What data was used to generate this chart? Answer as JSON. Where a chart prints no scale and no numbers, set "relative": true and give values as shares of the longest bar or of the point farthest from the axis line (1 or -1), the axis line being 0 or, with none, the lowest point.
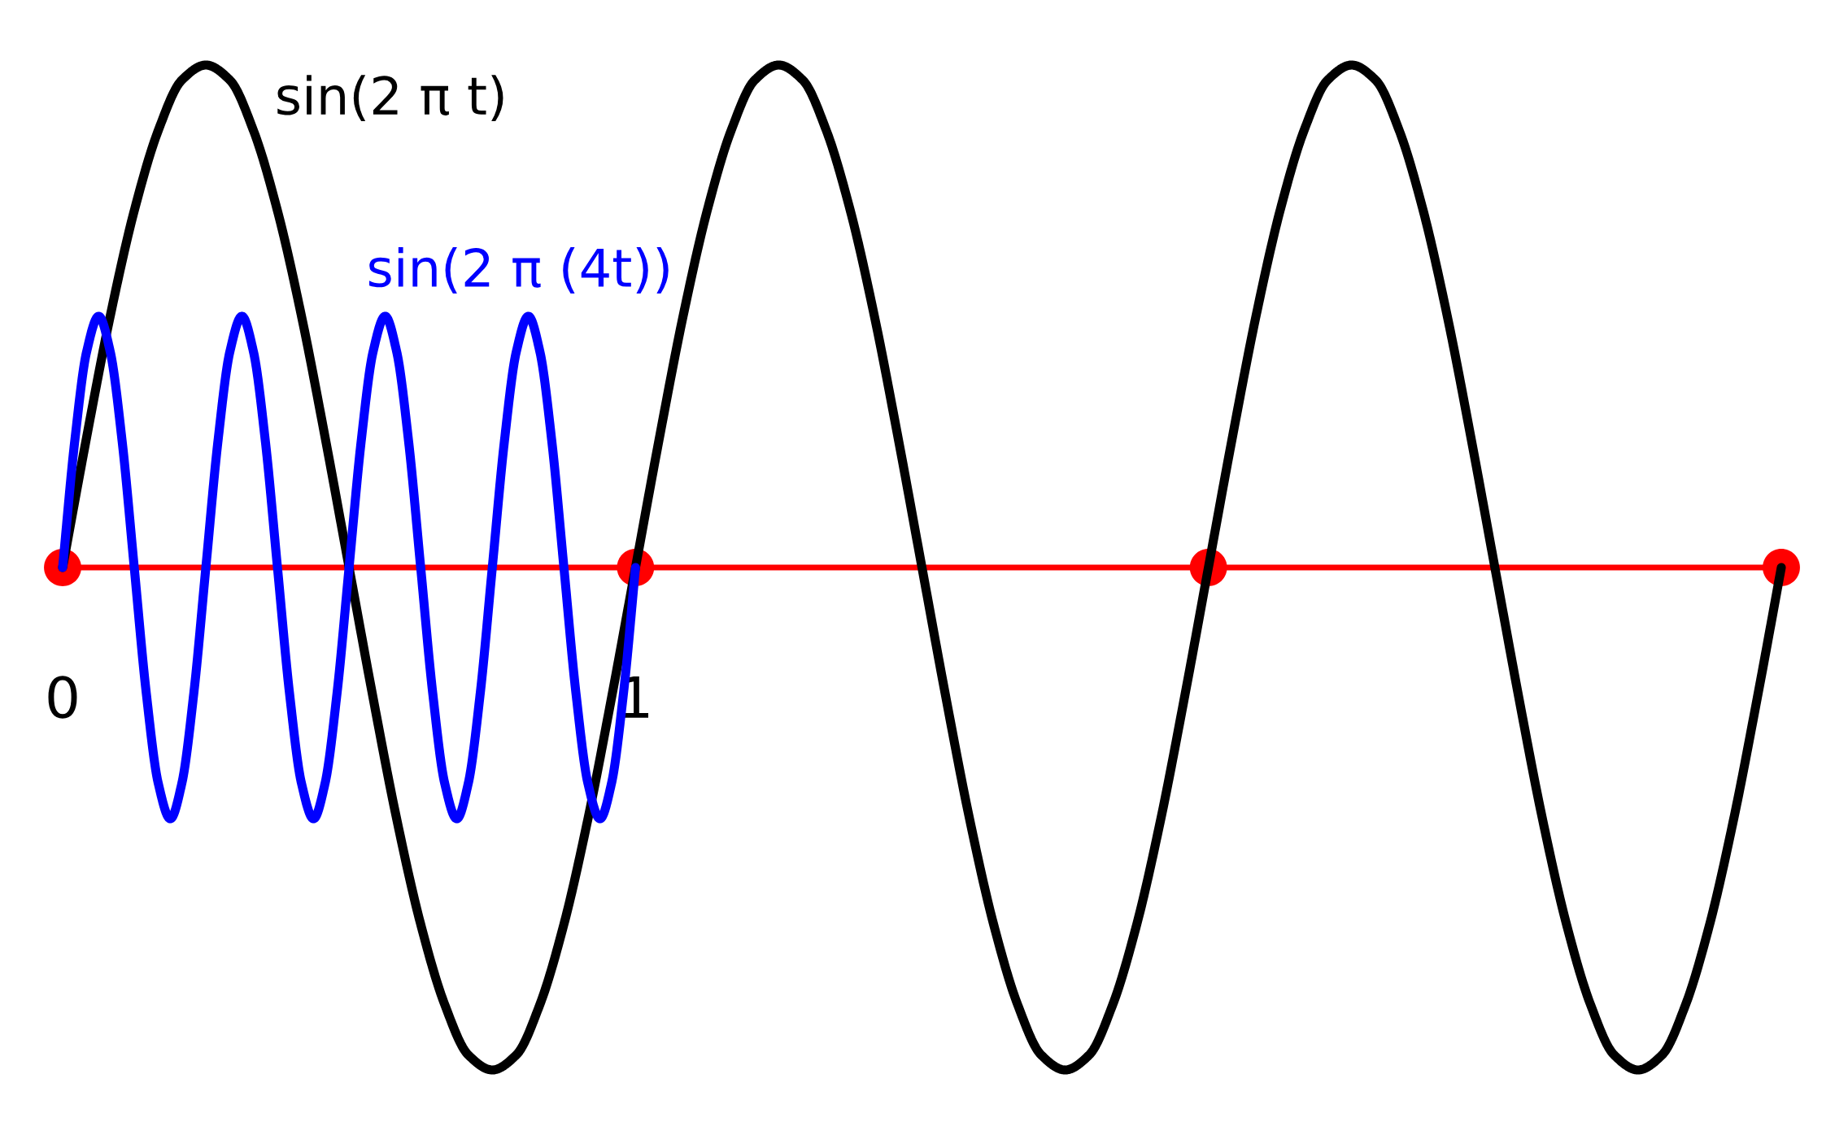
{
  "chart_data": {
    "type": "line",
    "relative": true,
    "xlim": [
      0,
      3
    ],
    "xticks": [
      0,
      1
    ],
    "legend": false,
    "grid": false,
    "line_style": "solid",
    "series": [
      {
        "type": "scatter",
        "color": "#ff0000",
        "marker": "circle",
        "x": [
          0,
          1,
          2,
          3
        ],
        "values": [
          0,
          0,
          0,
          0
        ]
      },
      {
        "name": "sin(2 π t)",
        "color": "#000000",
        "marker": "none",
        "x": [
          0,
          0.042,
          0.083,
          0.125,
          0.167,
          0.208,
          0.25,
          0.292,
          0.333,
          0.375,
          0.417,
          0.458,
          0.5,
          0.542,
          0.583,
          0.625,
          0.667,
          0.708,
          0.75,
          0.792,
          0.833,
          0.875,
          0.917,
          0.958,
          1,
          1.042,
          1.083,
          1.125,
          1.167,
          1.208,
          1.25,
          1.292,
          1.333,
          1.375,
          1.417,
          1.458,
          1.5,
          1.542,
          1.583,
          1.625,
          1.667,
          1.708,
          1.75,
          1.792,
          1.833,
          1.875,
          1.917,
          1.958,
          2,
          2.042,
          2.083,
          2.125,
          2.167,
          2.208,
          2.25,
          2.292,
          2.333,
          2.375,
          2.417,
          2.458,
          2.5,
          2.542,
          2.583,
          2.625,
          2.667,
          2.708,
          2.75,
          2.792,
          2.833,
          2.875,
          2.917,
          2.958,
          3
        ],
        "values": [
          0,
          0.26,
          0.5,
          0.71,
          0.87,
          0.97,
          1,
          0.97,
          0.87,
          0.71,
          0.5,
          0.26,
          0,
          -0.26,
          -0.5,
          -0.71,
          -0.87,
          -0.97,
          -1,
          -0.97,
          -0.87,
          -0.71,
          -0.5,
          -0.26,
          0,
          0.26,
          0.5,
          0.71,
          0.87,
          0.97,
          1,
          0.97,
          0.87,
          0.71,
          0.5,
          0.26,
          0,
          -0.26,
          -0.5,
          -0.71,
          -0.87,
          -0.97,
          -1,
          -0.97,
          -0.87,
          -0.71,
          -0.5,
          -0.26,
          0,
          0.26,
          0.5,
          0.71,
          0.87,
          0.97,
          1,
          0.97,
          0.87,
          0.71,
          0.5,
          0.26,
          0,
          -0.26,
          -0.5,
          -0.71,
          -0.87,
          -0.97,
          -1,
          -0.97,
          -0.87,
          -0.71,
          -0.5,
          -0.26,
          0
        ]
      },
      {
        "name": "sin(2 π (4t))",
        "color": "#0000ff",
        "marker": "none",
        "x": [
          0,
          0.021,
          0.042,
          0.063,
          0.083,
          0.104,
          0.125,
          0.146,
          0.167,
          0.188,
          0.208,
          0.229,
          0.25,
          0.271,
          0.292,
          0.313,
          0.333,
          0.354,
          0.375,
          0.396,
          0.417,
          0.438,
          0.458,
          0.479,
          0.5,
          0.521,
          0.542,
          0.563,
          0.583,
          0.604,
          0.625,
          0.646,
          0.667,
          0.688,
          0.708,
          0.729,
          0.75,
          0.771,
          0.792,
          0.813,
          0.833,
          0.854,
          0.875,
          0.896,
          0.917,
          0.938,
          0.958,
          0.979,
          1
        ],
        "values": [
          0,
          0.25,
          0.43,
          0.5,
          0.43,
          0.25,
          0,
          -0.25,
          -0.43,
          -0.5,
          -0.43,
          -0.25,
          0,
          0.25,
          0.43,
          0.5,
          0.43,
          0.25,
          0,
          -0.25,
          -0.43,
          -0.5,
          -0.43,
          -0.25,
          0,
          0.25,
          0.43,
          0.5,
          0.43,
          0.25,
          0,
          -0.25,
          -0.43,
          -0.5,
          -0.43,
          -0.25,
          0,
          0.25,
          0.43,
          0.5,
          0.43,
          0.25,
          0,
          -0.25,
          -0.43,
          -0.5,
          -0.43,
          -0.25,
          0
        ]
      }
    ]
  }
}
